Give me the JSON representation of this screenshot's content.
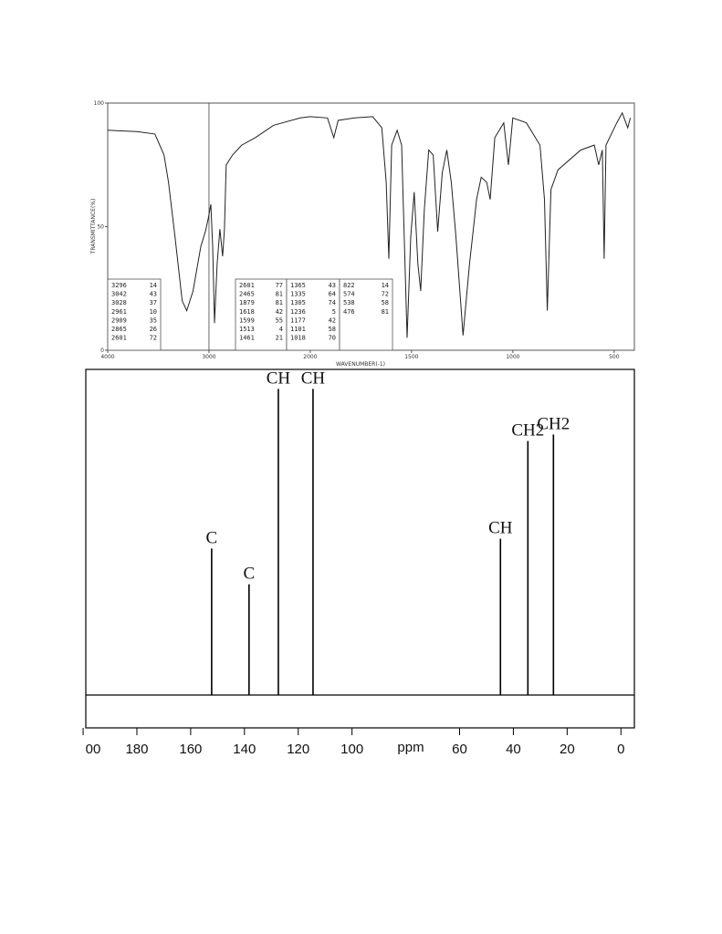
{
  "chart_data": [
    {
      "type": "line",
      "y_label": "TRANSMITTANCE(%)",
      "x_label": "WAVENUMBER(-1)",
      "xlim": [
        4000,
        400
      ],
      "xticks": [
        4000,
        3000,
        2000,
        1500,
        1000,
        500
      ],
      "ylim": [
        0,
        100
      ],
      "yticks": [
        0,
        50,
        100
      ],
      "marker_x": 3000,
      "color": "#222222",
      "x": [
        4000,
        3713,
        3534,
        3444,
        3400,
        3336,
        3265,
        3220,
        3157,
        3081,
        3036,
        3009,
        2982,
        2964,
        2946,
        2919,
        2892,
        2865,
        2847,
        2830,
        2767,
        2677,
        2543,
        2363,
        2099,
        2000,
        1915,
        1884,
        1862,
        1781,
        1692,
        1647,
        1625,
        1612,
        1598,
        1571,
        1549,
        1522,
        1504,
        1487,
        1469,
        1455,
        1437,
        1415,
        1393,
        1371,
        1348,
        1326,
        1304,
        1281,
        1246,
        1214,
        1196,
        1179,
        1156,
        1129,
        1112,
        1089,
        1045,
        1022,
        1000,
        933,
        866,
        844,
        830,
        812,
        777,
        665,
        598,
        576,
        558,
        549,
        540,
        487,
        460,
        433,
        420
      ],
      "values": [
        89,
        88.5,
        87.5,
        79,
        68,
        46,
        20,
        16,
        24,
        42,
        48,
        53,
        59,
        42,
        11,
        35,
        49,
        38,
        49,
        75,
        79,
        83,
        86,
        91,
        94,
        94.5,
        94,
        86,
        93,
        94,
        94.5,
        90,
        68,
        37,
        83,
        89,
        83,
        5,
        46,
        64,
        35,
        24,
        57,
        81,
        79,
        48,
        72,
        81,
        68,
        46,
        6,
        35,
        48,
        61,
        70,
        68,
        61,
        86,
        92,
        75,
        94,
        92,
        83,
        61,
        16,
        65,
        73,
        81,
        83,
        75,
        81,
        37,
        83,
        92,
        96,
        90,
        94
      ],
      "peak_columns": [
        [
          [
            3296,
            14
          ],
          [
            3042,
            43
          ],
          [
            3028,
            37
          ],
          [
            2961,
            10
          ],
          [
            2909,
            35
          ],
          [
            2865,
            26
          ],
          [
            2601,
            72
          ]
        ],
        [
          [
            2601,
            77
          ],
          [
            2465,
            81
          ],
          [
            1879,
            81
          ],
          [
            1618,
            42
          ],
          [
            1599,
            55
          ],
          [
            1513,
            4
          ],
          [
            1461,
            21
          ]
        ],
        [
          [
            1365,
            43
          ],
          [
            1335,
            64
          ],
          [
            1305,
            74
          ],
          [
            1236,
            5
          ],
          [
            1177,
            42
          ],
          [
            1101,
            58
          ],
          [
            1018,
            70
          ]
        ],
        [
          [
            822,
            14
          ],
          [
            574,
            72
          ],
          [
            538,
            58
          ],
          [
            476,
            81
          ]
        ]
      ]
    },
    {
      "type": "stem",
      "x_label": "ppm",
      "xlim": [
        199,
        -5
      ],
      "xticks": [
        {
          "value": 200,
          "label": "00"
        },
        180,
        160,
        140,
        120,
        100,
        60,
        40,
        20,
        0
      ],
      "ylim": [
        0,
        100
      ],
      "color": "#000000",
      "x": [
        152.2,
        138.3,
        127.4,
        114.5,
        44.8,
        34.6,
        25.1
      ],
      "values": [
        45,
        34,
        94,
        94,
        48,
        78,
        80
      ],
      "labels": [
        "C",
        "C",
        "CH",
        "CH",
        "CH",
        "CH2",
        "CH2"
      ]
    }
  ]
}
